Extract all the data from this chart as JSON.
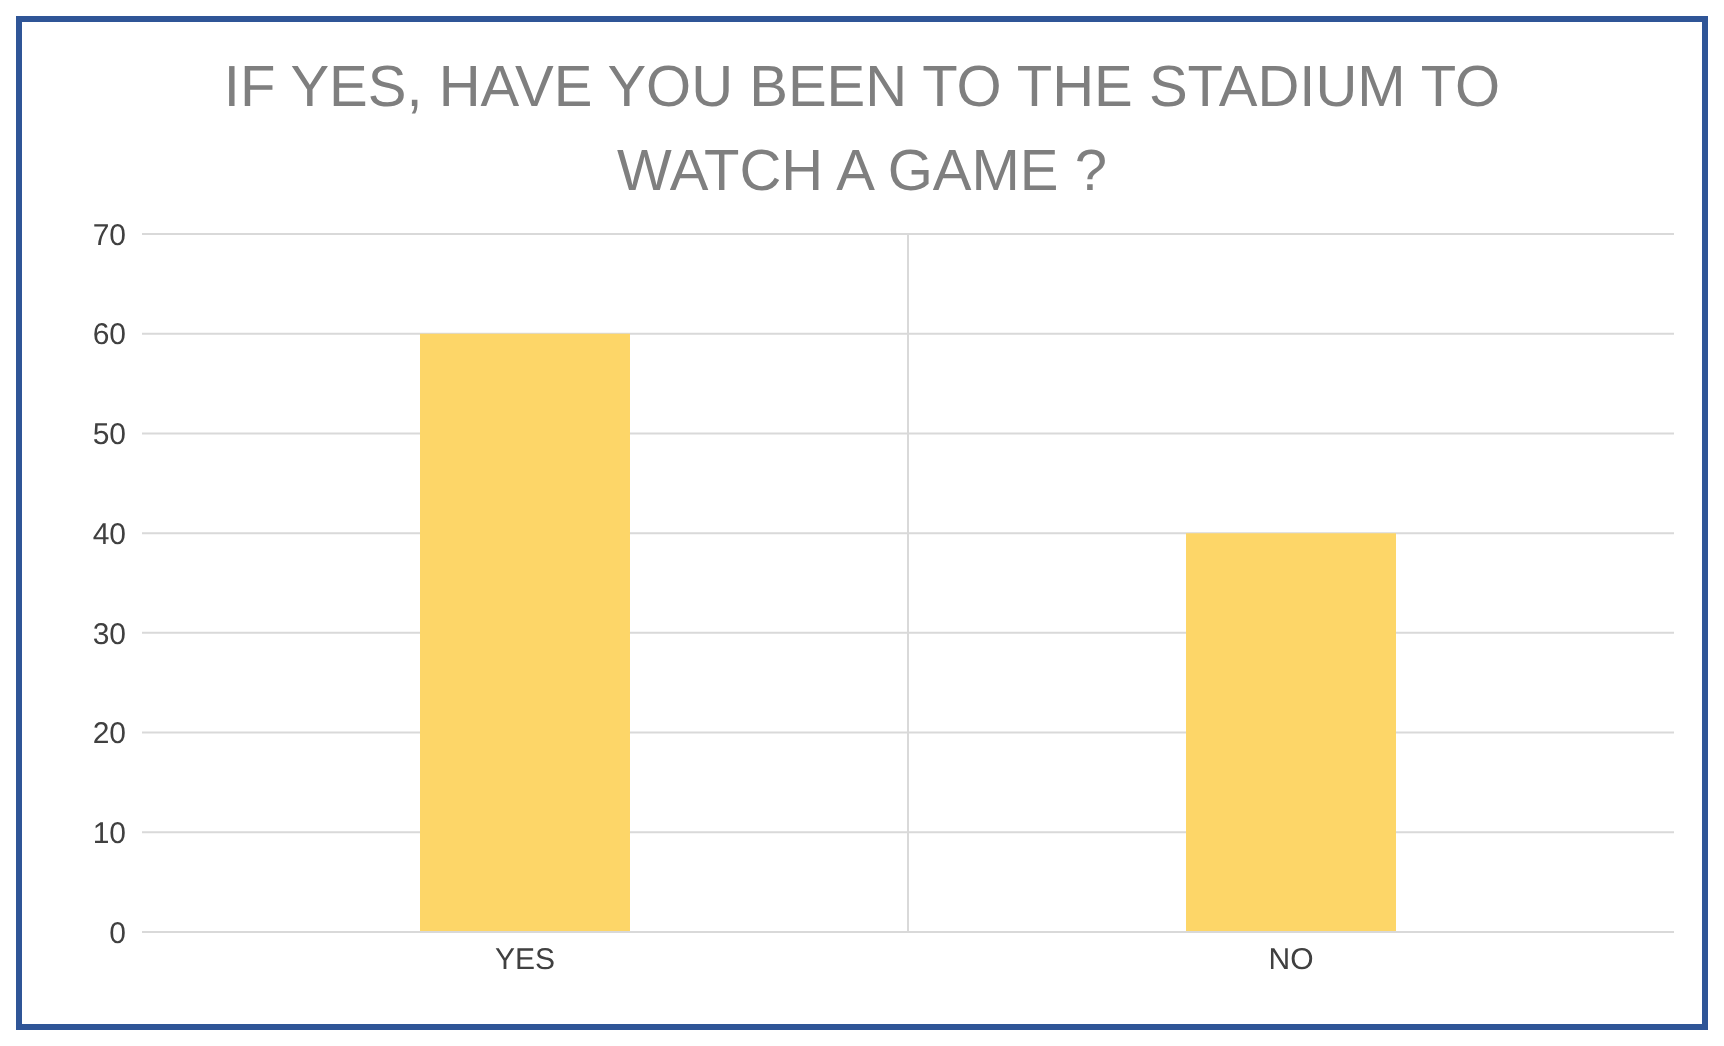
{
  "chart_data": {
    "type": "bar",
    "title": "IF YES, HAVE YOU BEEN TO THE STADIUM TO WATCH A GAME ?",
    "categories": [
      "YES",
      "NO"
    ],
    "values": [
      60,
      40
    ],
    "color": "#fdd668",
    "ylim": [
      0,
      70
    ],
    "yticks": [
      0,
      10,
      20,
      30,
      40,
      50,
      60,
      70
    ],
    "grid": true
  }
}
